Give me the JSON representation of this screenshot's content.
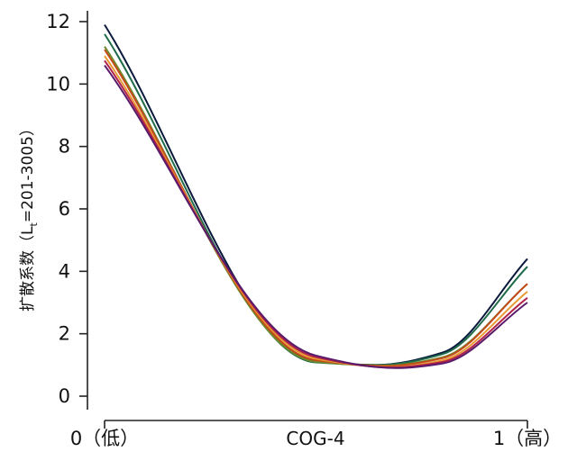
{
  "chart_data": {
    "type": "line",
    "ylabel": {
      "prefix": "扩散系数（L",
      "sub": "t",
      "suffix": "=201-3005）"
    },
    "xlabel": "COG-4",
    "xlim": [
      0,
      1
    ],
    "ylim": [
      0,
      12
    ],
    "yticks": [
      0,
      2,
      4,
      6,
      8,
      10,
      12
    ],
    "xticks": [
      {
        "value": 0,
        "label": "0（低）"
      },
      {
        "value": 1,
        "label": "1（高）"
      }
    ],
    "grid": false,
    "legend": "none",
    "series": [
      {
        "color": "#0b1a3c",
        "points": [
          [
            0,
            11.9
          ],
          [
            0.5,
            1.12
          ],
          [
            0.64,
            1.0
          ],
          [
            0.8,
            1.4
          ],
          [
            1,
            4.4
          ]
        ]
      },
      {
        "color": "#1f6b4a",
        "points": [
          [
            0,
            11.6
          ],
          [
            0.5,
            1.08
          ],
          [
            0.65,
            1.0
          ],
          [
            0.8,
            1.35
          ],
          [
            1,
            4.15
          ]
        ]
      },
      {
        "color": "#6e8a2a",
        "points": [
          [
            0,
            11.2
          ],
          [
            0.5,
            1.1
          ],
          [
            0.66,
            0.98
          ],
          [
            0.8,
            1.25
          ],
          [
            1,
            3.6
          ]
        ]
      },
      {
        "color": "#c44a1a",
        "points": [
          [
            0,
            11.1
          ],
          [
            0.5,
            1.15
          ],
          [
            0.67,
            0.97
          ],
          [
            0.8,
            1.22
          ],
          [
            1,
            3.6
          ]
        ]
      },
      {
        "color": "#e89a30",
        "points": [
          [
            0,
            10.9
          ],
          [
            0.5,
            1.2
          ],
          [
            0.68,
            0.93
          ],
          [
            0.8,
            1.15
          ],
          [
            1,
            3.35
          ]
        ]
      },
      {
        "color": "#b0224a",
        "points": [
          [
            0,
            10.75
          ],
          [
            0.5,
            1.25
          ],
          [
            0.68,
            0.92
          ],
          [
            0.8,
            1.1
          ],
          [
            1,
            3.15
          ]
        ]
      },
      {
        "color": "#5a1a6a",
        "points": [
          [
            0,
            10.6
          ],
          [
            0.5,
            1.3
          ],
          [
            0.69,
            0.9
          ],
          [
            0.8,
            1.05
          ],
          [
            1,
            3.0
          ]
        ]
      }
    ]
  }
}
